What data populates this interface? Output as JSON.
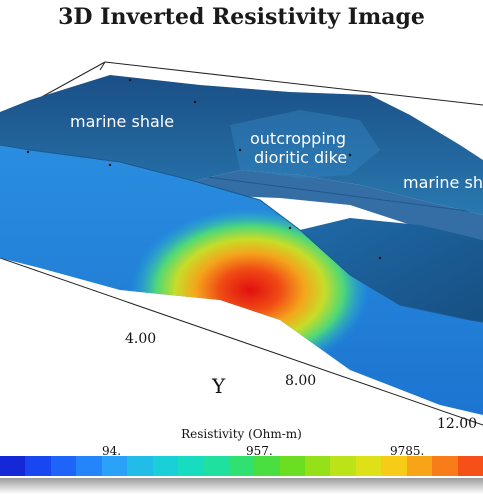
{
  "title": "3D Inverted Resistivity Image",
  "labels": {
    "marine_shale_left": "marine shale",
    "dike_line1": "outcropping",
    "dike_line2": "dioritic dike",
    "marine_shale_right": "marine sh"
  },
  "axis": {
    "name": "Y",
    "ticks": [
      "4.00",
      "8.00",
      "12.00"
    ]
  },
  "colorbar": {
    "title": "Resistivity (Ohm-m)",
    "ticks": [
      "94.",
      "957.",
      "9785."
    ],
    "colors": [
      "#1428d8",
      "#1846f0",
      "#1e64f8",
      "#2484fa",
      "#2aa2f8",
      "#22bce8",
      "#1ad0d8",
      "#18dcc0",
      "#20e0a0",
      "#30e070",
      "#4ade40",
      "#6cde22",
      "#96e01a",
      "#bce218",
      "#dee018",
      "#f6cc18",
      "#f8a418",
      "#f87c18",
      "#f45018"
    ]
  }
}
